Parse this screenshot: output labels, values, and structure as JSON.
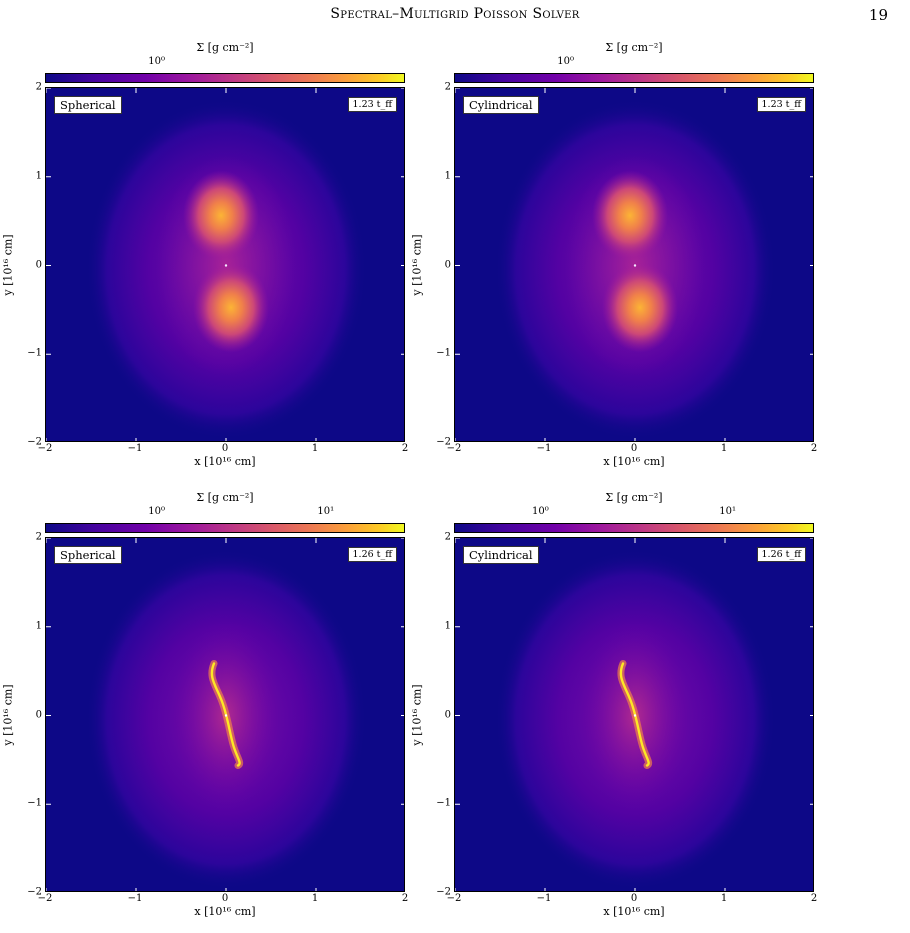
{
  "header": {
    "running_title": "Spectral–Multigrid Poisson Solver",
    "page_number": "19"
  },
  "colors": {
    "background": "#0d0887",
    "cmap": "plasma"
  },
  "panels": [
    {
      "label": "Spherical",
      "time": "1.23 t_ff",
      "colorbar_title": "Σ [g cm⁻²]",
      "colorbar_ticks": [
        "10⁰"
      ],
      "x_label": "x [10¹⁶ cm]",
      "y_label": "y [10¹⁶ cm]",
      "x_ticks": [
        "−2",
        "−1",
        "0",
        "1",
        "2"
      ],
      "y_ticks": [
        "2",
        "1",
        "0",
        "−1",
        "−2"
      ]
    },
    {
      "label": "Cylindrical",
      "time": "1.23 t_ff",
      "colorbar_title": "Σ [g cm⁻²]",
      "colorbar_ticks": [
        "10⁰"
      ],
      "x_label": "x [10¹⁶ cm]",
      "y_label": "y [10¹⁶ cm]",
      "x_ticks": [
        "−2",
        "−1",
        "0",
        "1",
        "2"
      ],
      "y_ticks": [
        "2",
        "1",
        "0",
        "−1",
        "−2"
      ]
    },
    {
      "label": "Spherical",
      "time": "1.26 t_ff",
      "colorbar_title": "Σ [g cm⁻²]",
      "colorbar_ticks": [
        "10⁰",
        "10¹"
      ],
      "x_label": "x [10¹⁶ cm]",
      "y_label": "y [10¹⁶ cm]",
      "x_ticks": [
        "−2",
        "−1",
        "0",
        "1",
        "2"
      ],
      "y_ticks": [
        "2",
        "1",
        "0",
        "−1",
        "−2"
      ]
    },
    {
      "label": "Cylindrical",
      "time": "1.26 t_ff",
      "colorbar_title": "Σ [g cm⁻²]",
      "colorbar_ticks": [
        "10⁰",
        "10¹"
      ],
      "x_label": "x [10¹⁶ cm]",
      "y_label": "y [10¹⁶ cm]",
      "x_ticks": [
        "−2",
        "−1",
        "0",
        "1",
        "2"
      ],
      "y_ticks": [
        "2",
        "1",
        "0",
        "−1",
        "−2"
      ]
    }
  ]
}
